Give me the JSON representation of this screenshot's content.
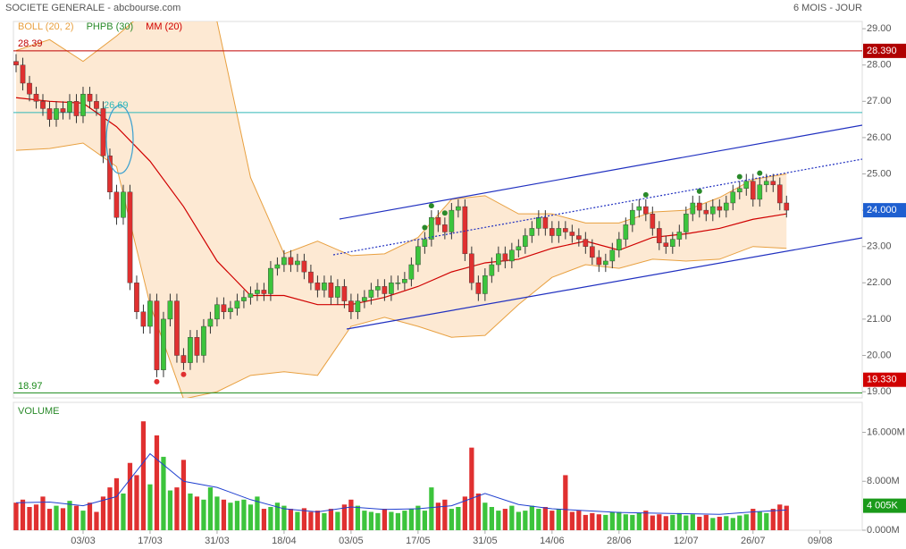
{
  "chart_data": {
    "type": "candlestick",
    "title": "SOCIETE GENERALE - abcbourse.com",
    "period": "6 MOIS - JOUR",
    "legend": [
      {
        "name": "BOLL (20, 2)",
        "color": "#e8a040"
      },
      {
        "name": "PHPB (30)",
        "color": "#2a8a2a"
      },
      {
        "name": "MM (20)",
        "color": "#d00000"
      }
    ],
    "volume_title": "VOLUME",
    "up_color": "#3cc43c",
    "down_color": "#e03030",
    "xlim": [
      -0.4,
      126.3
    ],
    "xticks": [
      {
        "value": 10,
        "label": "03/03"
      },
      {
        "value": 20,
        "label": "17/03"
      },
      {
        "value": 30,
        "label": "31/03"
      },
      {
        "value": 40,
        "label": "18/04"
      },
      {
        "value": 50,
        "label": "03/05"
      },
      {
        "value": 60,
        "label": "17/05"
      },
      {
        "value": 70,
        "label": "31/05"
      },
      {
        "value": 80,
        "label": "14/06"
      },
      {
        "value": 90,
        "label": "28/06"
      },
      {
        "value": 100,
        "label": "12/07"
      },
      {
        "value": 110,
        "label": "26/07"
      },
      {
        "value": 120,
        "label": "09/08"
      }
    ],
    "ylim": [
      18.83,
      29.2
    ],
    "yticks": [
      {
        "value": 19,
        "label": "19.00"
      },
      {
        "value": 20,
        "label": "20.00"
      },
      {
        "value": 21,
        "label": "21.00"
      },
      {
        "value": 22,
        "label": "22.00"
      },
      {
        "value": 23,
        "label": "23.00"
      },
      {
        "value": 24,
        "label": "24.00"
      },
      {
        "value": 25,
        "label": "25.00"
      },
      {
        "value": 26,
        "label": "26.00"
      },
      {
        "value": 27,
        "label": "27.00"
      },
      {
        "value": 28,
        "label": "28.00"
      },
      {
        "value": 29,
        "label": "29.00"
      }
    ],
    "candles": [
      [
        28.1,
        28.3,
        27.8,
        28.0
      ],
      [
        28.0,
        28.2,
        27.3,
        27.5
      ],
      [
        27.5,
        27.7,
        27.0,
        27.2
      ],
      [
        27.2,
        27.4,
        26.8,
        27.0
      ],
      [
        27.0,
        27.2,
        26.6,
        26.8
      ],
      [
        26.8,
        27.0,
        26.3,
        26.5
      ],
      [
        26.5,
        27.0,
        26.3,
        26.8
      ],
      [
        26.8,
        27.0,
        26.5,
        26.7
      ],
      [
        26.7,
        27.2,
        26.5,
        27.0
      ],
      [
        27.0,
        27.2,
        26.4,
        26.6
      ],
      [
        26.6,
        27.4,
        26.4,
        27.2
      ],
      [
        27.2,
        27.4,
        26.8,
        27.0
      ],
      [
        27.0,
        27.2,
        26.6,
        26.8
      ],
      [
        26.8,
        27.0,
        25.3,
        25.5
      ],
      [
        25.5,
        25.7,
        24.3,
        24.5
      ],
      [
        24.5,
        24.7,
        23.6,
        23.8
      ],
      [
        23.8,
        24.7,
        23.6,
        24.5
      ],
      [
        24.5,
        24.7,
        21.8,
        22.0
      ],
      [
        22.0,
        22.2,
        21.0,
        21.2
      ],
      [
        21.2,
        21.4,
        20.6,
        20.8
      ],
      [
        20.8,
        21.7,
        20.6,
        21.5
      ],
      [
        21.5,
        21.7,
        19.4,
        19.6
      ],
      [
        19.6,
        21.2,
        19.4,
        21.0
      ],
      [
        21.0,
        21.7,
        20.8,
        21.5
      ],
      [
        21.5,
        21.7,
        19.8,
        20.0
      ],
      [
        20.0,
        20.2,
        19.6,
        19.8
      ],
      [
        19.8,
        20.7,
        19.6,
        20.5
      ],
      [
        20.5,
        20.7,
        19.8,
        20.0
      ],
      [
        20.0,
        21.0,
        19.8,
        20.8
      ],
      [
        20.8,
        21.2,
        20.6,
        21.0
      ],
      [
        21.0,
        21.6,
        20.8,
        21.4
      ],
      [
        21.4,
        21.6,
        21.0,
        21.2
      ],
      [
        21.2,
        21.5,
        21.0,
        21.3
      ],
      [
        21.3,
        21.7,
        21.1,
        21.5
      ],
      [
        21.5,
        21.8,
        21.3,
        21.6
      ],
      [
        21.6,
        21.9,
        21.4,
        21.7
      ],
      [
        21.7,
        22.0,
        21.5,
        21.8
      ],
      [
        21.8,
        22.0,
        21.5,
        21.7
      ],
      [
        21.7,
        22.6,
        21.5,
        22.4
      ],
      [
        22.4,
        22.7,
        22.2,
        22.5
      ],
      [
        22.5,
        22.9,
        22.3,
        22.7
      ],
      [
        22.7,
        22.9,
        22.3,
        22.5
      ],
      [
        22.5,
        22.8,
        22.3,
        22.6
      ],
      [
        22.6,
        22.8,
        22.1,
        22.3
      ],
      [
        22.3,
        22.5,
        21.8,
        22.0
      ],
      [
        22.0,
        22.2,
        21.6,
        21.8
      ],
      [
        21.8,
        22.2,
        21.6,
        22.0
      ],
      [
        22.0,
        22.2,
        21.4,
        21.6
      ],
      [
        21.6,
        22.1,
        21.4,
        21.9
      ],
      [
        21.9,
        22.1,
        21.3,
        21.5
      ],
      [
        21.5,
        21.7,
        21.0,
        21.2
      ],
      [
        21.2,
        21.7,
        21.0,
        21.5
      ],
      [
        21.5,
        21.8,
        21.3,
        21.6
      ],
      [
        21.6,
        22.0,
        21.4,
        21.8
      ],
      [
        21.8,
        22.1,
        21.6,
        21.9
      ],
      [
        21.9,
        22.1,
        21.5,
        21.7
      ],
      [
        21.7,
        22.2,
        21.5,
        22.0
      ],
      [
        22.0,
        22.2,
        21.8,
        22.0
      ],
      [
        22.0,
        22.3,
        21.8,
        22.1
      ],
      [
        22.1,
        22.7,
        21.9,
        22.5
      ],
      [
        22.5,
        23.2,
        22.3,
        23.0
      ],
      [
        23.0,
        23.4,
        22.8,
        23.2
      ],
      [
        23.2,
        24.0,
        23.0,
        23.8
      ],
      [
        23.8,
        24.0,
        23.4,
        23.6
      ],
      [
        23.6,
        23.8,
        23.2,
        23.4
      ],
      [
        23.4,
        24.2,
        23.2,
        24.0
      ],
      [
        24.0,
        24.3,
        23.8,
        24.1
      ],
      [
        24.1,
        24.3,
        22.6,
        22.8
      ],
      [
        22.8,
        23.0,
        21.8,
        22.0
      ],
      [
        22.0,
        22.2,
        21.5,
        21.7
      ],
      [
        21.7,
        22.4,
        21.5,
        22.2
      ],
      [
        22.2,
        22.7,
        22.0,
        22.5
      ],
      [
        22.5,
        23.0,
        22.3,
        22.8
      ],
      [
        22.8,
        23.0,
        22.4,
        22.6
      ],
      [
        22.6,
        23.1,
        22.4,
        22.9
      ],
      [
        22.9,
        23.2,
        22.7,
        23.0
      ],
      [
        23.0,
        23.5,
        22.8,
        23.3
      ],
      [
        23.3,
        23.7,
        23.1,
        23.5
      ],
      [
        23.5,
        24.0,
        23.3,
        23.8
      ],
      [
        23.8,
        24.0,
        23.3,
        23.5
      ],
      [
        23.5,
        23.7,
        23.1,
        23.3
      ],
      [
        23.3,
        23.7,
        23.1,
        23.5
      ],
      [
        23.5,
        23.7,
        23.2,
        23.4
      ],
      [
        23.4,
        23.6,
        23.1,
        23.3
      ],
      [
        23.3,
        23.5,
        23.0,
        23.2
      ],
      [
        23.2,
        23.4,
        22.8,
        23.0
      ],
      [
        23.0,
        23.2,
        22.5,
        22.7
      ],
      [
        22.7,
        22.9,
        22.3,
        22.5
      ],
      [
        22.5,
        22.8,
        22.3,
        22.6
      ],
      [
        22.6,
        23.1,
        22.4,
        22.9
      ],
      [
        22.9,
        23.4,
        22.7,
        23.2
      ],
      [
        23.2,
        23.8,
        23.0,
        23.6
      ],
      [
        23.6,
        24.2,
        23.4,
        24.0
      ],
      [
        24.0,
        24.3,
        23.8,
        24.1
      ],
      [
        24.1,
        24.3,
        23.7,
        23.9
      ],
      [
        23.9,
        24.1,
        23.3,
        23.5
      ],
      [
        23.5,
        23.7,
        22.9,
        23.1
      ],
      [
        23.1,
        23.3,
        22.8,
        23.0
      ],
      [
        23.0,
        23.4,
        22.8,
        23.2
      ],
      [
        23.2,
        23.6,
        23.0,
        23.4
      ],
      [
        23.4,
        24.1,
        23.2,
        23.9
      ],
      [
        23.9,
        24.4,
        23.7,
        24.2
      ],
      [
        24.2,
        24.4,
        23.8,
        24.0
      ],
      [
        24.0,
        24.2,
        23.7,
        23.9
      ],
      [
        23.9,
        24.3,
        23.7,
        24.1
      ],
      [
        24.1,
        24.3,
        23.8,
        24.0
      ],
      [
        24.0,
        24.4,
        23.8,
        24.2
      ],
      [
        24.2,
        24.7,
        24.0,
        24.5
      ],
      [
        24.5,
        24.8,
        24.3,
        24.6
      ],
      [
        24.6,
        25.0,
        24.4,
        24.8
      ],
      [
        24.8,
        25.0,
        24.1,
        24.3
      ],
      [
        24.3,
        24.9,
        24.1,
        24.7
      ],
      [
        24.7,
        25.0,
        24.5,
        24.8
      ],
      [
        24.8,
        25.0,
        24.5,
        24.7
      ],
      [
        24.7,
        24.9,
        24.0,
        24.2
      ],
      [
        24.2,
        24.4,
        23.8,
        24.0
      ]
    ],
    "indicator_x": [
      0,
      5,
      10,
      15,
      20,
      25,
      30,
      35,
      40,
      45,
      50,
      55,
      60,
      65,
      70,
      75,
      80,
      85,
      90,
      95,
      100,
      105,
      110,
      115
    ],
    "boll_upper": [
      28.4,
      28.7,
      28.1,
      28.8,
      29.6,
      29.5,
      29.2,
      24.9,
      22.8,
      23.15,
      22.75,
      22.8,
      23.25,
      24.3,
      24.4,
      23.9,
      23.9,
      23.65,
      23.65,
      23.95,
      24.0,
      24.35,
      24.85,
      25.0
    ],
    "boll_lower": [
      25.65,
      25.7,
      25.85,
      25.2,
      21.4,
      18.8,
      19.0,
      19.45,
      19.55,
      19.45,
      20.8,
      21.05,
      20.8,
      20.5,
      20.55,
      21.4,
      22.15,
      22.5,
      22.4,
      22.65,
      22.6,
      22.65,
      23.0,
      22.95
    ],
    "mm20": [
      27.1,
      27.0,
      26.95,
      26.3,
      25.35,
      24.1,
      22.6,
      21.65,
      21.65,
      21.4,
      21.4,
      21.6,
      21.9,
      22.3,
      22.55,
      22.65,
      22.95,
      23.15,
      22.9,
      23.25,
      23.35,
      23.5,
      23.75,
      23.9
    ],
    "pivot_highs": [
      61,
      62,
      64,
      94,
      102,
      108,
      111
    ],
    "pivot_lows": [
      21,
      25
    ],
    "levels": [
      {
        "value": 28.39,
        "label": "28.39",
        "color": "#c00000"
      },
      {
        "value": 26.69,
        "label": "26.69",
        "color": "#30b8b8"
      },
      {
        "value": 18.97,
        "label": "18.97",
        "color": "#1a8a1a"
      }
    ],
    "price_tags": [
      {
        "value": 28.39,
        "label": "28.390",
        "color": "#b00000"
      },
      {
        "value": 24.0,
        "label": "24.000",
        "color": "#1e5fd0"
      },
      {
        "value": 19.33,
        "label": "19.330",
        "color": "#d00000"
      }
    ],
    "volume": [
      4.5,
      5.0,
      3.8,
      4.2,
      5.5,
      3.5,
      4.0,
      3.6,
      4.8,
      4.0,
      3.2,
      4.5,
      3.0,
      5.5,
      7.0,
      8.5,
      6.0,
      11.0,
      9.0,
      17.8,
      7.5,
      15.5,
      12.0,
      6.5,
      7.0,
      11.5,
      6.0,
      5.5,
      5.0,
      7.0,
      5.5,
      5.0,
      4.5,
      4.8,
      5.0,
      4.2,
      5.5,
      3.5,
      3.8,
      4.5,
      4.0,
      3.5,
      3.0,
      3.6,
      3.0,
      3.2,
      2.8,
      3.5,
      3.0,
      4.2,
      5.0,
      4.0,
      3.2,
      3.0,
      2.8,
      3.5,
      3.0,
      2.8,
      3.2,
      3.5,
      4.0,
      3.2,
      7.0,
      4.5,
      5.0,
      3.5,
      3.8,
      5.5,
      13.5,
      6.0,
      4.5,
      3.8,
      3.2,
      3.5,
      4.0,
      3.0,
      3.2,
      4.0,
      3.5,
      3.8,
      3.2,
      3.5,
      9.0,
      3.0,
      3.2,
      2.5,
      2.8,
      2.6,
      2.5,
      3.0,
      3.0,
      2.6,
      2.5,
      2.8,
      3.2,
      2.4,
      2.6,
      2.3,
      2.5,
      2.8,
      2.4,
      2.6,
      2.2,
      2.5,
      2.0,
      2.2,
      2.3,
      2.0,
      2.4,
      2.6,
      3.5,
      3.0,
      2.8,
      3.5,
      4.2,
      4.005
    ],
    "volume_ma": [
      4.5,
      4.6,
      4.0,
      5.5,
      12.5,
      8.0,
      7.0,
      5.0,
      3.5,
      3.0,
      3.8,
      3.4,
      3.5,
      4.0,
      6.0,
      4.2,
      3.5,
      3.2,
      2.9,
      2.8,
      2.7,
      2.6,
      3.0,
      3.3
    ],
    "volume_ma_color": "#2040d0",
    "vlim": [
      0,
      20.9
    ],
    "vticks": [
      {
        "value": 0,
        "label": "0.000M"
      },
      {
        "value": 8,
        "label": "8.000M"
      },
      {
        "value": 16,
        "label": "16.000M"
      }
    ],
    "volume_tag": {
      "value": 4.005,
      "label": "4 005K",
      "color": "#1a9a1a"
    }
  }
}
